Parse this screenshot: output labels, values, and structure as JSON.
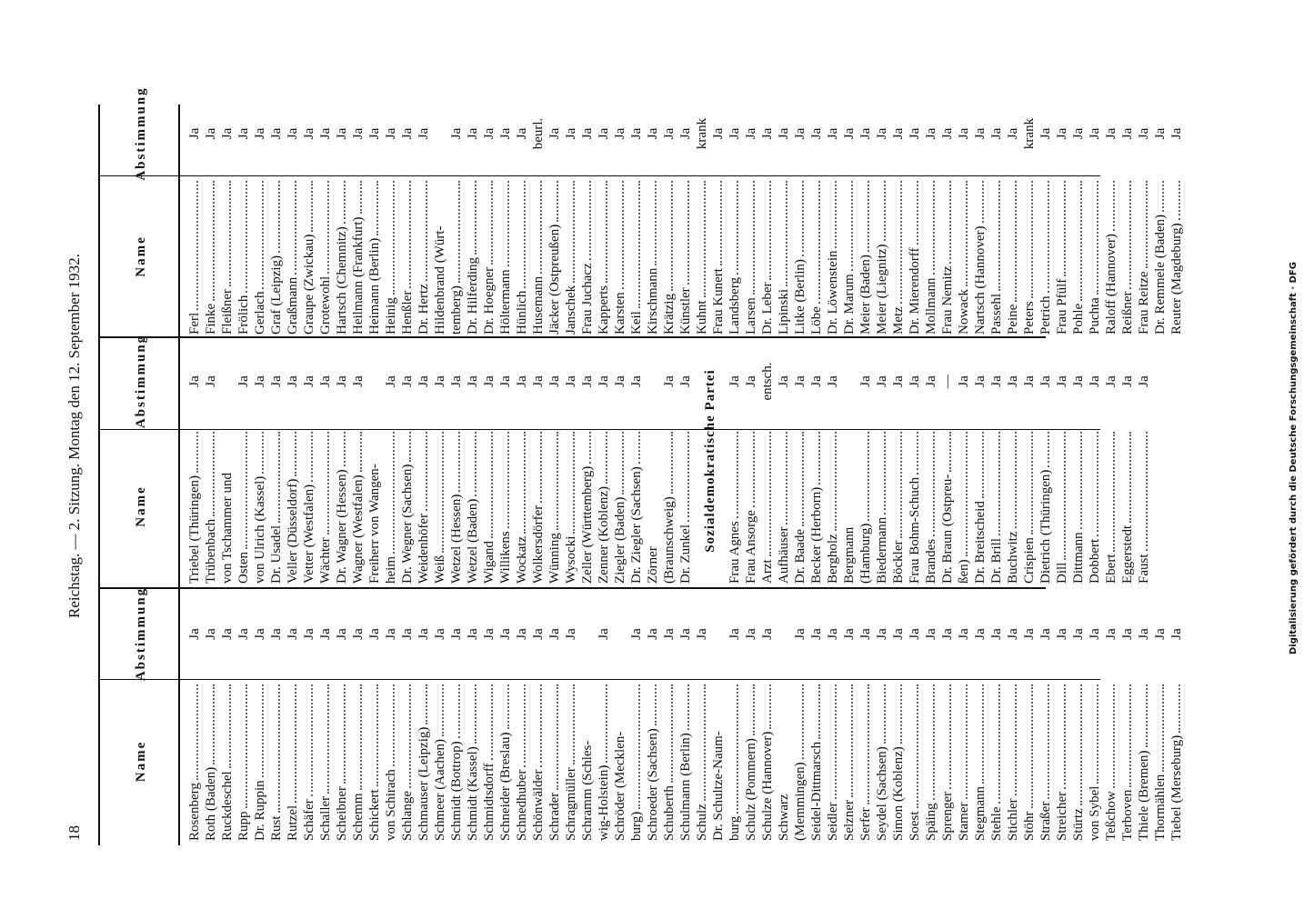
{
  "header": {
    "page_number": "18",
    "text": "Reichstag. — 2. Sitzung. Montag den 12. September 1932."
  },
  "column_headers": {
    "name": "Name",
    "vote": "Abstimmung"
  },
  "columns": [
    {
      "blocks": [
        {
          "rows": [
            [
              "Rosenberg",
              "Ja"
            ],
            [
              "Roth (Baden)",
              "Ja"
            ],
            [
              "Ruckdeschel",
              "Ja"
            ],
            [
              "Rupp",
              "Ja"
            ],
            [
              "Dr. Ruppin",
              "Ja"
            ],
            [
              "Rust",
              "Ja"
            ],
            [
              "Rutzel",
              "Ja"
            ],
            [
              "Schäfer",
              "Ja"
            ],
            [
              "Schaller",
              "Ja"
            ],
            [
              "Scheibner",
              "Ja"
            ],
            [
              "Schemm",
              "Ja"
            ],
            [
              "Schickert",
              "Ja"
            ],
            [
              "von Schirach",
              "Ja"
            ],
            [
              "Schlange",
              "Ja"
            ],
            [
              "Schmauser (Leipzig)",
              "Ja"
            ],
            [
              "Schmeer (Aachen)",
              "Ja"
            ],
            [
              "Schmidt (Bottrop)",
              "Ja"
            ],
            [
              "Schmidt (Kassel)",
              "Ja"
            ],
            [
              "Schmidtsdorff",
              "Ja"
            ],
            [
              "Schneider (Breslau)",
              "Ja"
            ],
            [
              "Schnedhuber",
              "Ja"
            ],
            [
              "Schönwälder",
              "Ja"
            ],
            [
              "Schrader",
              "Ja"
            ],
            [
              "Schragmüller",
              "Ja"
            ],
            [
              "Schramm (Schles-",
              null
            ],
            [
              "wig-Holstein)",
              "Ja"
            ],
            [
              "Schröder (Mecklen-",
              null
            ],
            [
              "burg)",
              "Ja"
            ],
            [
              "Schroeder (Sachsen)",
              "Ja"
            ],
            [
              "Schuberth",
              "Ja"
            ],
            [
              "Schulmann (Berlin)",
              "Ja"
            ],
            [
              "Schulz",
              "Ja"
            ],
            [
              "Dr. Schultze-Naum-",
              null
            ],
            [
              "burg",
              "Ja"
            ],
            [
              "Schulz (Pommern)",
              "Ja"
            ],
            [
              "Schulze (Hannover)",
              "Ja"
            ],
            [
              "Schwarz",
              null
            ],
            [
              "(Memmingen)",
              "Ja"
            ],
            [
              "Seidel-Dittmarsch",
              "Ja"
            ],
            [
              "Seidler",
              "Ja"
            ],
            [
              "Selzner",
              "Ja"
            ],
            [
              "Serfer",
              "Ja"
            ],
            [
              "Seydel (Sachsen)",
              "Ja"
            ],
            [
              "Simon (Koblenz)",
              "Ja"
            ],
            [
              "Soest",
              "Ja"
            ],
            [
              "Späing",
              "Ja"
            ],
            [
              "Sprenger",
              "Ja"
            ],
            [
              "Stamer",
              "Ja"
            ],
            [
              "Stegmann",
              "Ja"
            ],
            [
              "Stehle",
              "Ja"
            ],
            [
              "Stichler",
              "Ja"
            ],
            [
              "Stöhr",
              "Ja"
            ],
            [
              "Straßer",
              "Ja"
            ],
            [
              "Streicher",
              "Ja"
            ],
            [
              "Stürtz",
              "Ja"
            ],
            [
              "von Sybel",
              "Ja"
            ],
            [
              "Teßchow",
              "Ja"
            ],
            [
              "Terboven",
              "Ja"
            ],
            [
              "Thiele (Bremen)",
              "Ja"
            ],
            [
              "Thormählen",
              "Ja"
            ],
            [
              "Tiebel (Merseburg)",
              "Ja"
            ]
          ]
        }
      ]
    },
    {
      "blocks": [
        {
          "rows": [
            [
              "Triebel (Thüringen)",
              "Ja"
            ],
            [
              "Trübenbach",
              "Ja"
            ],
            [
              "von Tschammer und",
              null
            ],
            [
              "Osten",
              "Ja"
            ],
            [
              "von Ulrich (Kassel)",
              "Ja"
            ],
            [
              "Dr. Usadel",
              "Ja"
            ],
            [
              "Veller (Düsseldorf)",
              "Ja"
            ],
            [
              "Vetter (Westfalen)",
              "Ja"
            ],
            [
              "Wächter",
              "Ja"
            ],
            [
              "Dr. Wagner (Hessen)",
              "Ja"
            ],
            [
              "Wagner (Westfalen)",
              "Ja"
            ],
            [
              "Freiherr von Wangen-",
              null
            ],
            [
              "heim",
              "Ja"
            ],
            [
              "Dr. Wegner (Sachsen)",
              "Ja"
            ],
            [
              "Weidenhöfer",
              "Ja"
            ],
            [
              "Weiß",
              "Ja"
            ],
            [
              "Wetzel (Hessen)",
              "Ja"
            ],
            [
              "Wetzel (Baden)",
              "Ja"
            ],
            [
              "Wigand",
              "Ja"
            ],
            [
              "Willikens",
              "Ja"
            ],
            [
              "Wockatz",
              "Ja"
            ],
            [
              "Wolkersdörfer",
              "Ja"
            ],
            [
              "Wünning",
              "Ja"
            ],
            [
              "Wysocki",
              "Ja"
            ],
            [
              "Zeller (Württemberg)",
              "Ja"
            ],
            [
              "Zenner (Koblenz)",
              "Ja"
            ],
            [
              "Ziegler (Baden)",
              "Ja"
            ],
            [
              "Dr. Ziegler (Sachsen)",
              "Ja"
            ],
            [
              "Zörner",
              null
            ],
            [
              "(Braunschweig)",
              "Ja"
            ],
            [
              "Dr. Zunkel",
              "Ja"
            ]
          ]
        },
        {
          "heading": "Sozialdemokratische Partei",
          "rows": [
            [
              "Frau Agnes",
              "Ja"
            ],
            [
              "Frau Ansorge",
              "Ja"
            ],
            [
              "Arzt",
              "entsch."
            ],
            [
              "Aufhäuser",
              "Ja"
            ],
            [
              "Dr. Baade",
              "Ja"
            ],
            [
              "Becker (Herborn)",
              "Ja"
            ],
            [
              "Bergholz",
              "Ja"
            ],
            [
              "Bergmann",
              null
            ],
            [
              "(Hamburg)",
              "Ja"
            ],
            [
              "Biedermann",
              "Ja"
            ],
            [
              "Böckler",
              "Ja"
            ],
            [
              "Frau Bohm-Schuch",
              "Ja"
            ],
            [
              "Brandes",
              "Ja"
            ],
            [
              "Dr. Braun (Ostpreu-",
              "—"
            ],
            [
              "ßen)",
              "Ja"
            ],
            [
              "Dr. Breitscheid",
              "Ja"
            ],
            [
              "Dr. Brill",
              "Ja"
            ],
            [
              "Buchwitz",
              "Ja"
            ],
            [
              "Crispien",
              "Ja"
            ],
            [
              "Dietrich (Thüringen)",
              "Ja"
            ],
            [
              "Dill",
              "Ja"
            ],
            [
              "Dittmann",
              "Ja"
            ],
            [
              "Dobbert",
              "Ja"
            ],
            [
              "Ebert",
              "Ja"
            ],
            [
              "Eggerstedt",
              "Ja"
            ],
            [
              "Faust",
              "Ja"
            ]
          ]
        }
      ]
    },
    {
      "blocks": [
        {
          "rows": [
            [
              "Ferl",
              "Ja"
            ],
            [
              "Finke",
              "Ja"
            ],
            [
              "Fleißner",
              "Ja"
            ],
            [
              "Frölich",
              "Ja"
            ],
            [
              "Gerlach",
              "Ja"
            ],
            [
              "Graf (Leipzig)",
              "Ja"
            ],
            [
              "Graßmann",
              "Ja"
            ],
            [
              "Graupe (Zwickau)",
              "Ja"
            ],
            [
              "Grotewohl",
              "Ja"
            ],
            [
              "Hartsch (Chemnitz)",
              "Ja"
            ],
            [
              "Heilmann (Frankfurt)",
              "Ja"
            ],
            [
              "Heimann (Berlin)",
              "Ja"
            ],
            [
              "Heinig",
              "Ja"
            ],
            [
              "Henßler",
              "Ja"
            ],
            [
              "Dr. Hertz",
              "Ja"
            ],
            [
              "Hildenbrand (Würt-",
              null
            ],
            [
              "temberg)",
              "Ja"
            ],
            [
              "Dr. Hilferding",
              "Ja"
            ],
            [
              "Dr. Hoegner",
              "Ja"
            ],
            [
              "Höltermann",
              "Ja"
            ],
            [
              "Hünlich",
              "Ja"
            ],
            [
              "Husemann",
              "beurl."
            ],
            [
              "Jäcker (Ostpreußen)",
              "Ja"
            ],
            [
              "Janschek",
              "Ja"
            ],
            [
              "Frau Juchacz",
              "Ja"
            ],
            [
              "Kapperts",
              "Ja"
            ],
            [
              "Karsten",
              "Ja"
            ],
            [
              "Keil",
              "Ja"
            ],
            [
              "Kirschmann",
              "Ja"
            ],
            [
              "Krätzig",
              "Ja"
            ],
            [
              "Künstler",
              "Ja"
            ],
            [
              "Kuhnt",
              "krank"
            ],
            [
              "Frau Kunert",
              "Ja"
            ],
            [
              "Landsberg",
              "Ja"
            ],
            [
              "Larsen",
              "Ja"
            ],
            [
              "Dr. Leber",
              "Ja"
            ],
            [
              "Lipinski",
              "Ja"
            ],
            [
              "Litke (Berlin)",
              "Ja"
            ],
            [
              "Löbe",
              "Ja"
            ],
            [
              "Dr. Löwenstein",
              "Ja"
            ],
            [
              "Dr. Marum",
              "Ja"
            ],
            [
              "Meier (Baden)",
              "Ja"
            ],
            [
              "Meier (Liegnitz)",
              "Ja"
            ],
            [
              "Metz",
              "Ja"
            ],
            [
              "Dr. Mierendorff",
              "Ja"
            ],
            [
              "Mollmann",
              "Ja"
            ],
            [
              "Frau Nemitz",
              "Ja"
            ],
            [
              "Nowack",
              "Ja"
            ],
            [
              "Nartsch (Hannover)",
              "Ja"
            ],
            [
              "Passehl",
              "Ja"
            ],
            [
              "Peine",
              "Ja"
            ],
            [
              "Peters",
              "krank"
            ],
            [
              "Petrich",
              "Ja"
            ],
            [
              "Frau Pfülf",
              "Ja"
            ],
            [
              "Pohle",
              "Ja"
            ],
            [
              "Puchta",
              "Ja"
            ],
            [
              "Raloff (Hannover)",
              "Ja"
            ],
            [
              "Reißner",
              "Ja"
            ],
            [
              "Frau Reitze",
              "Ja"
            ],
            [
              "Dr. Remmele (Baden)",
              "Ja"
            ],
            [
              "Reuter (Magdeburg)",
              "Ja"
            ]
          ]
        }
      ]
    }
  ],
  "footer_note": "Digitalisierung gefördert durch die Deutsche Forschungsgemeinschaft · DFG"
}
